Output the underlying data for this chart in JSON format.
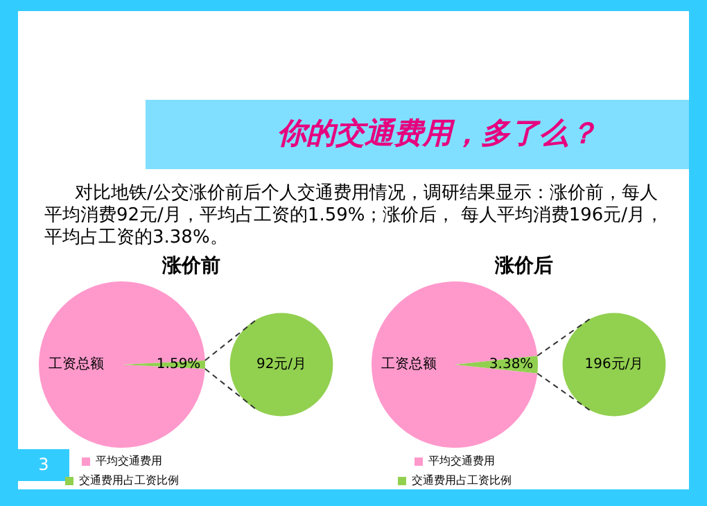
{
  "chart_data": [
    {
      "type": "other",
      "title": "你的交通费用，多了么？",
      "annotations": [
        "对比地铁/公交涨价前后个人交通费用情况，调研结果显示：涨价前，每人平均消费92元/月，平均占工资的1.59%；涨价后， 每人平均消费196元/月，平均占工资的3.38%。",
        "3"
      ]
    },
    {
      "type": "pie",
      "title": "涨价前",
      "categories": [
        "平均交通费用",
        "交通费用占工资比例"
      ],
      "values": [
        98.41,
        1.59
      ],
      "colors": [
        "#ff99cc",
        "#92d050"
      ],
      "value_labels": [
        "工资总额",
        "1.59%"
      ],
      "annotations": [
        "92元/月"
      ],
      "legend": "bottom"
    },
    {
      "type": "pie",
      "title": "涨价后",
      "categories": [
        "平均交通费用",
        "交通费用占工资比例"
      ],
      "values": [
        96.62,
        3.38
      ],
      "colors": [
        "#ff99cc",
        "#92d050"
      ],
      "value_labels": [
        "工资总额",
        "3.38%"
      ],
      "annotations": [
        "196元/月"
      ],
      "legend": "bottom"
    }
  ]
}
